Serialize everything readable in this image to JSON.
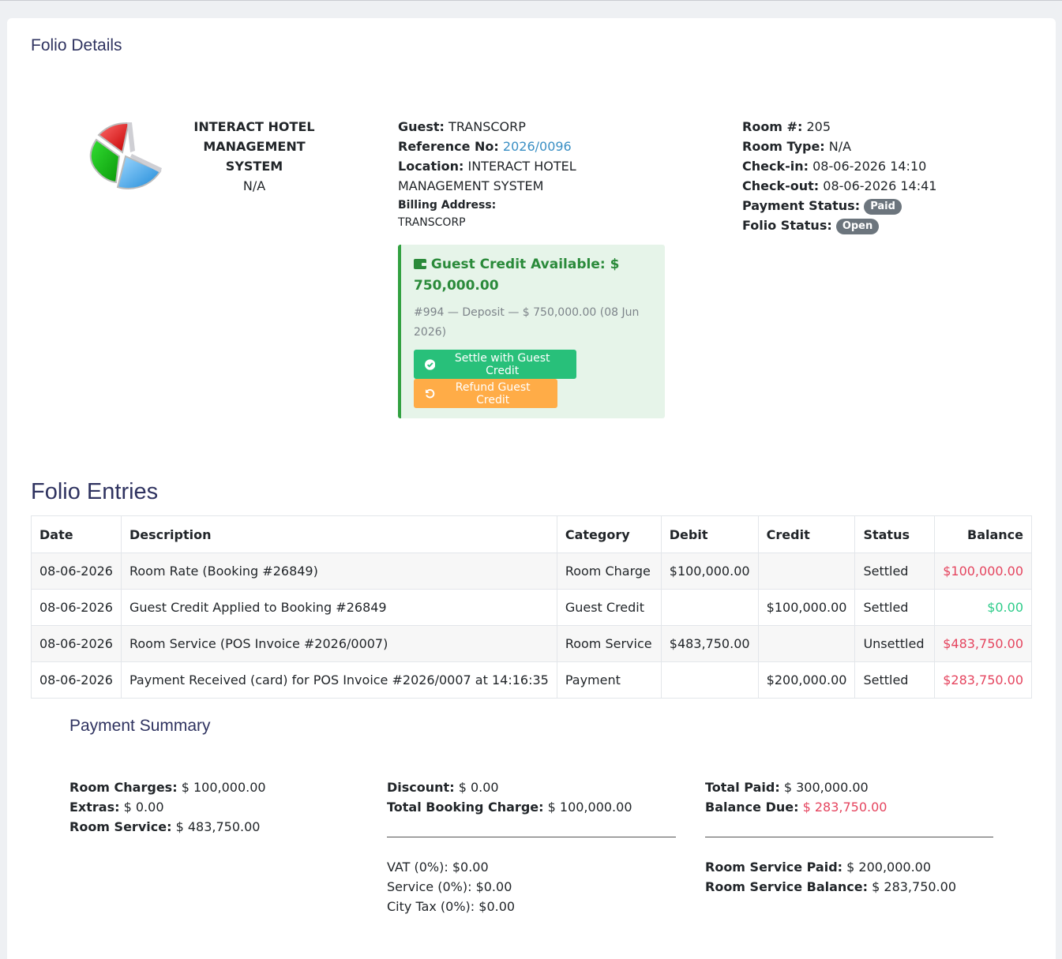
{
  "page": {
    "title": "Folio Details"
  },
  "hotel": {
    "name": "INTERACT HOTEL MANAGEMENT SYSTEM",
    "sub": "N/A"
  },
  "guest": {
    "guest_label": "Guest:",
    "guest_value": "TRANSCORP",
    "ref_label": "Reference No:",
    "ref_value": "2026/0096",
    "location_label": "Location:",
    "location_value_1": "INTERACT HOTEL",
    "location_value_2": "MANAGEMENT SYSTEM",
    "billing_label": "Billing Address:",
    "billing_value": "TRANSCORP"
  },
  "room": {
    "room_label": "Room #:",
    "room_value": "205",
    "type_label": "Room Type:",
    "type_value": "N/A",
    "checkin_label": "Check-in:",
    "checkin_value": "08-06-2026 14:10",
    "checkout_label": "Check-out:",
    "checkout_value": "08-06-2026 14:41",
    "payment_status_label": "Payment Status:",
    "payment_status_value": "Paid",
    "folio_status_label": "Folio Status:",
    "folio_status_value": "Open"
  },
  "credit": {
    "title_1": "Guest Credit Available: $",
    "title_2": "750,000.00",
    "note_1": "#994 — Deposit — $ 750,000.00 (08 Jun",
    "note_2": "2026)",
    "settle_label": "Settle with Guest Credit",
    "refund_label": "Refund Guest Credit",
    "accent": "#32a141"
  },
  "entries": {
    "title": "Folio Entries",
    "headers": [
      "Date",
      "Description",
      "Category",
      "Debit",
      "Credit",
      "Status",
      "Balance"
    ],
    "rows": [
      {
        "date": "08-06-2026",
        "description": "Room Rate (Booking #26849)",
        "category": "Room Charge",
        "debit": "$100,000.00",
        "credit": "",
        "status": "Settled",
        "balance": "$100,000.00",
        "balance_color": "red"
      },
      {
        "date": "08-06-2026",
        "description": "Guest Credit Applied to Booking #26849",
        "category": "Guest Credit",
        "debit": "",
        "credit": "$100,000.00",
        "status": "Settled",
        "balance": "$0.00",
        "balance_color": "green"
      },
      {
        "date": "08-06-2026",
        "description": "Room Service (POS Invoice #2026/0007)",
        "category": "Room Service",
        "debit": "$483,750.00",
        "credit": "",
        "status": "Unsettled",
        "balance": "$483,750.00",
        "balance_color": "red"
      },
      {
        "date": "08-06-2026",
        "description": "Payment Received (card) for POS Invoice #2026/0007 at 14:16:35",
        "category": "Payment",
        "debit": "",
        "credit": "$200,000.00",
        "status": "Settled",
        "balance": "$283,750.00",
        "balance_color": "red"
      }
    ]
  },
  "summary": {
    "title": "Payment Summary",
    "room_charges_label": "Room Charges:",
    "room_charges_value": "$ 100,000.00",
    "extras_label": "Extras:",
    "extras_value": "$ 0.00",
    "room_service_label": "Room Service:",
    "room_service_value": "$ 483,750.00",
    "discount_label": "Discount:",
    "discount_value": "$ 0.00",
    "total_booking_label": "Total Booking Charge:",
    "total_booking_value": "$ 100,000.00",
    "vat": "VAT (0%): $0.00",
    "service": "Service (0%): $0.00",
    "city_tax": "City Tax (0%): $0.00",
    "total_paid_label": "Total Paid:",
    "total_paid_value": "$ 300,000.00",
    "balance_due_label": "Balance Due:",
    "balance_due_value": "$ 283,750.00",
    "rs_paid_label": "Room Service Paid:",
    "rs_paid_value": "$ 200,000.00",
    "rs_balance_label": "Room Service Balance:",
    "rs_balance_value": "$ 283,750.00"
  }
}
